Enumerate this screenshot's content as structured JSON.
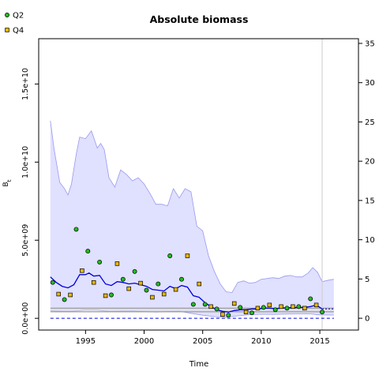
{
  "chart_data": {
    "type": "scatter",
    "title": "Absolute biomass",
    "xlabel": "Time",
    "ylabel": "B_t",
    "xlim": [
      1991.0,
      2018.3
    ],
    "ylim": [
      -750000000.0,
      17900000000.0
    ],
    "y2lim": [
      -1.5,
      35.6
    ],
    "x_ticks": [
      {
        "value": 1995,
        "label": "1995"
      },
      {
        "value": 2000,
        "label": "2000"
      },
      {
        "value": 2005,
        "label": "2005"
      },
      {
        "value": 2010,
        "label": "2010"
      },
      {
        "value": 2015,
        "label": "2015"
      }
    ],
    "y_ticks": [
      {
        "value": 0,
        "label": "0.0e+00"
      },
      {
        "value": 5000000000.0,
        "label": "5.0e+09"
      },
      {
        "value": 10000000000.0,
        "label": "1.0e+10"
      },
      {
        "value": 15000000000.0,
        "label": "1.5e+10"
      }
    ],
    "y2_ticks": [
      {
        "value": 0,
        "label": "0"
      },
      {
        "value": 5,
        "label": "5"
      },
      {
        "value": 10,
        "label": "10"
      },
      {
        "value": 15,
        "label": "15"
      },
      {
        "value": 20,
        "label": "20"
      },
      {
        "value": 25,
        "label": "25"
      },
      {
        "value": 30,
        "label": "30"
      },
      {
        "value": 35,
        "label": "35"
      }
    ],
    "legend": {
      "placement": "top-left",
      "entries": [
        {
          "label": "Q2",
          "color": "#22bb22"
        },
        {
          "label": "Q4",
          "color": "#e6b800"
        }
      ]
    },
    "colors": {
      "band_fill": "#e0e0ff",
      "band_line": "#9999ee",
      "estimate": "#0000dd",
      "fmsy_band": "#888888",
      "current_year_line": "#cccccc"
    },
    "current_year": 2015.2,
    "series": [
      {
        "name": "Q2",
        "points": [
          [
            1992.2,
            2300000000.0
          ],
          [
            1993.2,
            1200000000.0
          ],
          [
            1994.2,
            5700000000.0
          ],
          [
            1995.2,
            4300000000.0
          ],
          [
            1996.2,
            3600000000.0
          ],
          [
            1997.2,
            1500000000.0
          ],
          [
            1998.2,
            2500000000.0
          ],
          [
            1999.2,
            3000000000.0
          ],
          [
            2000.2,
            1800000000.0
          ],
          [
            2001.2,
            2200000000.0
          ],
          [
            2002.2,
            4000000000.0
          ],
          [
            2003.2,
            2500000000.0
          ],
          [
            2004.2,
            900000000.0
          ],
          [
            2005.2,
            900000000.0
          ],
          [
            2006.2,
            600000000.0
          ],
          [
            2007.2,
            200000000.0
          ],
          [
            2008.2,
            700000000.0
          ],
          [
            2009.2,
            350000000.0
          ],
          [
            2010.2,
            700000000.0
          ],
          [
            2011.2,
            550000000.0
          ],
          [
            2012.2,
            650000000.0
          ],
          [
            2013.2,
            750000000.0
          ],
          [
            2014.2,
            1250000000.0
          ],
          [
            2015.2,
            400000000.0
          ]
        ]
      },
      {
        "name": "Q4",
        "points": [
          [
            1992.7,
            1550000000.0
          ],
          [
            1993.7,
            1500000000.0
          ],
          [
            1994.7,
            3050000000.0
          ],
          [
            1995.7,
            2300000000.0
          ],
          [
            1996.7,
            1450000000.0
          ],
          [
            1997.7,
            3500000000.0
          ],
          [
            1998.7,
            1900000000.0
          ],
          [
            1999.7,
            2250000000.0
          ],
          [
            2000.7,
            1350000000.0
          ],
          [
            2001.7,
            1550000000.0
          ],
          [
            2002.7,
            1850000000.0
          ],
          [
            2003.7,
            4000000000.0
          ],
          [
            2004.7,
            2200000000.0
          ],
          [
            2005.7,
            750000000.0
          ],
          [
            2006.7,
            250000000.0
          ],
          [
            2007.7,
            950000000.0
          ],
          [
            2008.7,
            400000000.0
          ],
          [
            2009.7,
            650000000.0
          ],
          [
            2010.7,
            850000000.0
          ],
          [
            2011.7,
            750000000.0
          ],
          [
            2012.7,
            750000000.0
          ],
          [
            2013.7,
            650000000.0
          ],
          [
            2014.7,
            850000000.0
          ]
        ]
      }
    ],
    "estimate_line": [
      [
        1992.0,
        2650000000.0
      ],
      [
        1992.5,
        2300000000.0
      ],
      [
        1993.0,
        2050000000.0
      ],
      [
        1993.5,
        1950000000.0
      ],
      [
        1994.0,
        2150000000.0
      ],
      [
        1994.5,
        2800000000.0
      ],
      [
        1995.0,
        2800000000.0
      ],
      [
        1995.3,
        2900000000.0
      ],
      [
        1995.7,
        2700000000.0
      ],
      [
        1996.2,
        2750000000.0
      ],
      [
        1996.7,
        2200000000.0
      ],
      [
        1997.2,
        2100000000.0
      ],
      [
        1997.7,
        2350000000.0
      ],
      [
        1998.2,
        2300000000.0
      ],
      [
        1998.7,
        2200000000.0
      ],
      [
        1999.2,
        2250000000.0
      ],
      [
        1999.7,
        2150000000.0
      ],
      [
        2000.2,
        2050000000.0
      ],
      [
        2000.7,
        1850000000.0
      ],
      [
        2001.2,
        1800000000.0
      ],
      [
        2001.7,
        1750000000.0
      ],
      [
        2002.2,
        2050000000.0
      ],
      [
        2002.7,
        1900000000.0
      ],
      [
        2003.2,
        2100000000.0
      ],
      [
        2003.7,
        2000000000.0
      ],
      [
        2004.2,
        1450000000.0
      ],
      [
        2004.7,
        1350000000.0
      ],
      [
        2005.2,
        1000000000.0
      ],
      [
        2005.7,
        750000000.0
      ],
      [
        2006.2,
        550000000.0
      ],
      [
        2006.7,
        450000000.0
      ],
      [
        2007.2,
        400000000.0
      ],
      [
        2007.7,
        500000000.0
      ],
      [
        2008.2,
        550000000.0
      ],
      [
        2008.7,
        550000000.0
      ],
      [
        2009.2,
        600000000.0
      ],
      [
        2009.7,
        600000000.0
      ],
      [
        2010.2,
        650000000.0
      ],
      [
        2010.7,
        650000000.0
      ],
      [
        2011.2,
        620000000.0
      ],
      [
        2011.7,
        650000000.0
      ],
      [
        2012.2,
        680000000.0
      ],
      [
        2012.7,
        680000000.0
      ],
      [
        2013.2,
        700000000.0
      ],
      [
        2013.7,
        700000000.0
      ],
      [
        2014.2,
        750000000.0
      ],
      [
        2014.7,
        850000000.0
      ],
      [
        2015.2,
        600000000.0
      ]
    ],
    "forecast_line": [
      [
        2015.2,
        600000000.0
      ],
      [
        2016.2,
        600000000.0
      ]
    ],
    "band_upper": [
      [
        1992.0,
        12650000000.0
      ],
      [
        1992.3,
        10900000000.0
      ],
      [
        1992.8,
        8700000000.0
      ],
      [
        1993.2,
        8300000000.0
      ],
      [
        1993.5,
        7900000000.0
      ],
      [
        1993.8,
        8600000000.0
      ],
      [
        1994.2,
        10500000000.0
      ],
      [
        1994.5,
        11600000000.0
      ],
      [
        1995.0,
        11500000000.0
      ],
      [
        1995.5,
        12000000000.0
      ],
      [
        1996.0,
        10900000000.0
      ],
      [
        1996.3,
        11200000000.0
      ],
      [
        1996.6,
        10800000000.0
      ],
      [
        1997.0,
        9000000000.0
      ],
      [
        1997.5,
        8400000000.0
      ],
      [
        1998.0,
        9500000000.0
      ],
      [
        1998.5,
        9200000000.0
      ],
      [
        1999.0,
        8800000000.0
      ],
      [
        1999.5,
        9000000000.0
      ],
      [
        2000.0,
        8600000000.0
      ],
      [
        2000.5,
        8000000000.0
      ],
      [
        2001.0,
        7300000000.0
      ],
      [
        2001.5,
        7300000000.0
      ],
      [
        2002.0,
        7200000000.0
      ],
      [
        2002.5,
        8300000000.0
      ],
      [
        2003.0,
        7700000000.0
      ],
      [
        2003.5,
        8300000000.0
      ],
      [
        2004.0,
        8100000000.0
      ],
      [
        2004.5,
        5900000000.0
      ],
      [
        2005.0,
        5600000000.0
      ],
      [
        2005.5,
        4000000000.0
      ],
      [
        2006.0,
        3000000000.0
      ],
      [
        2006.5,
        2200000000.0
      ],
      [
        2007.0,
        1700000000.0
      ],
      [
        2007.5,
        1650000000.0
      ],
      [
        2008.0,
        2300000000.0
      ],
      [
        2008.5,
        2400000000.0
      ],
      [
        2009.0,
        2250000000.0
      ],
      [
        2009.5,
        2300000000.0
      ],
      [
        2010.0,
        2500000000.0
      ],
      [
        2011.0,
        2600000000.0
      ],
      [
        2011.5,
        2550000000.0
      ],
      [
        2012.0,
        2700000000.0
      ],
      [
        2012.5,
        2750000000.0
      ],
      [
        2013.0,
        2650000000.0
      ],
      [
        2013.5,
        2650000000.0
      ],
      [
        2014.0,
        2900000000.0
      ],
      [
        2014.4,
        3250000000.0
      ],
      [
        2014.8,
        2950000000.0
      ],
      [
        2015.2,
        2350000000.0
      ],
      [
        2015.8,
        2450000000.0
      ],
      [
        2016.2,
        2500000000.0
      ]
    ],
    "band_lower": [
      [
        1992.0,
        480000000.0
      ],
      [
        1993.0,
        450000000.0
      ],
      [
        1994.0,
        460000000.0
      ],
      [
        1995.0,
        550000000.0
      ],
      [
        1996.0,
        530000000.0
      ],
      [
        1997.0,
        440000000.0
      ],
      [
        1998.0,
        460000000.0
      ],
      [
        1999.0,
        470000000.0
      ],
      [
        2000.0,
        440000000.0
      ],
      [
        2001.0,
        400000000.0
      ],
      [
        2002.0,
        440000000.0
      ],
      [
        2003.0,
        460000000.0
      ],
      [
        2004.0,
        320000000.0
      ],
      [
        2005.0,
        200000000.0
      ],
      [
        2006.0,
        110000000.0
      ],
      [
        2007.0,
        60000000.0
      ],
      [
        2008.0,
        160000000.0
      ],
      [
        2009.0,
        230000000.0
      ],
      [
        2010.0,
        260000000.0
      ],
      [
        2011.0,
        250000000.0
      ],
      [
        2012.0,
        270000000.0
      ],
      [
        2013.0,
        280000000.0
      ],
      [
        2014.0,
        290000000.0
      ],
      [
        2015.0,
        220000000.0
      ],
      [
        2016.2,
        210000000.0
      ]
    ],
    "fmsy_band": {
      "lower": 420000000.0,
      "upper": 650000000.0
    },
    "reference_dashed": 0
  }
}
